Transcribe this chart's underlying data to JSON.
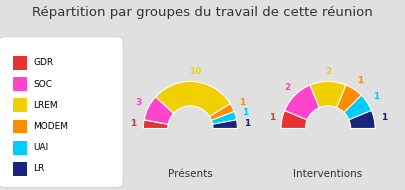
{
  "title": "Répartition par groupes du travail de cette réunion",
  "groups": [
    "GDR",
    "SOC",
    "LREM",
    "MODEM",
    "UAI",
    "LR"
  ],
  "colors": [
    "#e63232",
    "#ff44cc",
    "#f0d000",
    "#ff8c00",
    "#00ccff",
    "#1a237e"
  ],
  "presentes": [
    1,
    3,
    10,
    1,
    1,
    1
  ],
  "interventions": [
    1,
    2,
    2,
    1,
    1,
    1
  ],
  "label1": "Présents",
  "label2": "Interventions",
  "bg_color": "#e0e0e0",
  "legend_bg": "#ffffff",
  "title_fontsize": 9.5,
  "sublabel_fontsize": 7.5,
  "value_fontsize": 6.5,
  "legend_fontsize": 6.5
}
